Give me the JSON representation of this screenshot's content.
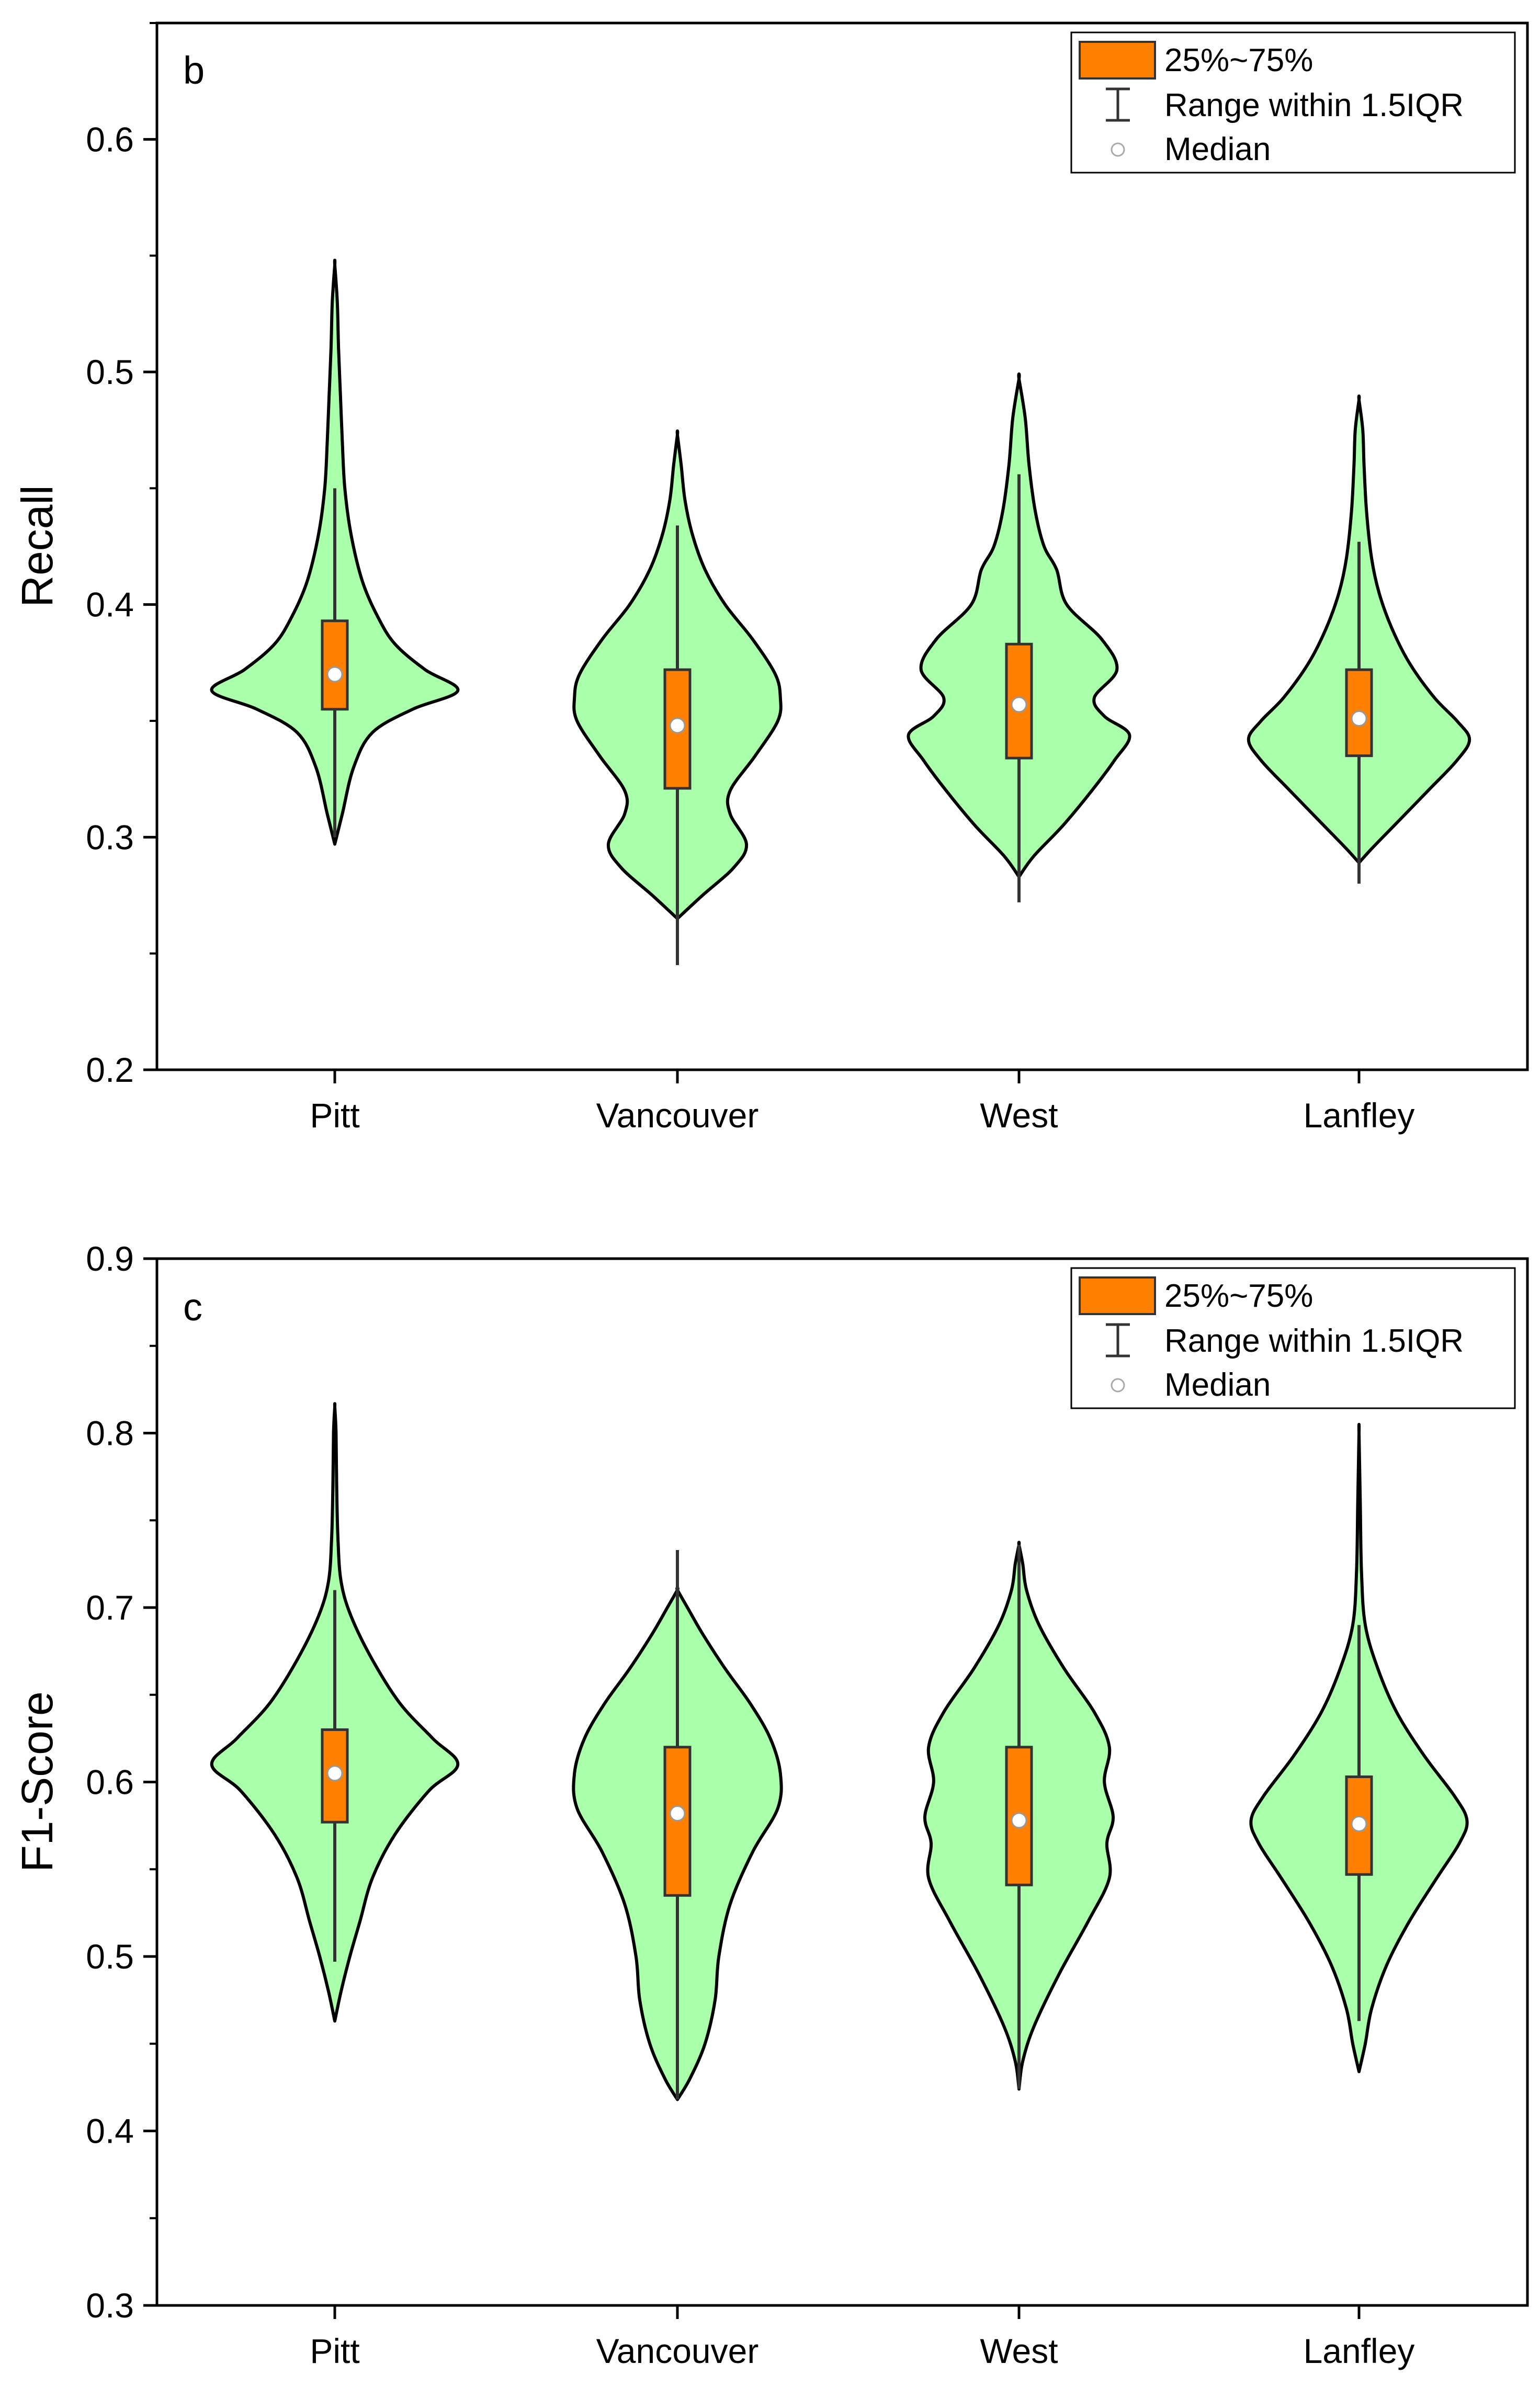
{
  "colors": {
    "violin_fill": "#aaffaa",
    "violin_stroke": "#000000",
    "box_fill": "#ff8000",
    "box_stroke": "#333333",
    "median_fill": "#ffffff",
    "whisker": "#333333"
  },
  "legend": {
    "box_label": "25%~75%",
    "whisker_label": "Range within 1.5IQR",
    "median_label": "Median"
  },
  "chart_data": [
    {
      "type": "violin",
      "panel_label": "b",
      "xlabel": "",
      "ylabel": "Recall",
      "ylim": [
        0.2,
        0.65
      ],
      "yticks": [
        0.2,
        0.3,
        0.4,
        0.5,
        0.6
      ],
      "ytick_labels": [
        "0.2",
        "0.3",
        "0.4",
        "0.5",
        "0.6"
      ],
      "categories": [
        "Pitt",
        "Vancouver",
        "West",
        "Lanfley"
      ],
      "series": [
        {
          "name": "Pitt",
          "median": 0.37,
          "q1": 0.355,
          "q3": 0.393,
          "whisker_low": 0.3,
          "whisker_high": 0.45,
          "violin_min": 0.297,
          "violin_max": 0.546,
          "profile": [
            [
              0.297,
              0.0
            ],
            [
              0.31,
              0.06
            ],
            [
              0.33,
              0.15
            ],
            [
              0.345,
              0.3
            ],
            [
              0.355,
              0.62
            ],
            [
              0.363,
              0.98
            ],
            [
              0.372,
              0.72
            ],
            [
              0.383,
              0.48
            ],
            [
              0.395,
              0.34
            ],
            [
              0.41,
              0.22
            ],
            [
              0.43,
              0.13
            ],
            [
              0.45,
              0.08
            ],
            [
              0.47,
              0.06
            ],
            [
              0.49,
              0.045
            ],
            [
              0.51,
              0.03
            ],
            [
              0.53,
              0.02
            ],
            [
              0.546,
              0.0
            ]
          ]
        },
        {
          "name": "Vancouver",
          "median": 0.348,
          "q1": 0.321,
          "q3": 0.372,
          "whisker_low": 0.245,
          "whisker_high": 0.434,
          "violin_min": 0.265,
          "violin_max": 0.473,
          "profile": [
            [
              0.265,
              0.0
            ],
            [
              0.275,
              0.2
            ],
            [
              0.287,
              0.45
            ],
            [
              0.297,
              0.55
            ],
            [
              0.31,
              0.42
            ],
            [
              0.32,
              0.42
            ],
            [
              0.335,
              0.62
            ],
            [
              0.35,
              0.8
            ],
            [
              0.36,
              0.82
            ],
            [
              0.37,
              0.78
            ],
            [
              0.385,
              0.6
            ],
            [
              0.4,
              0.38
            ],
            [
              0.415,
              0.22
            ],
            [
              0.43,
              0.12
            ],
            [
              0.445,
              0.06
            ],
            [
              0.46,
              0.03
            ],
            [
              0.473,
              0.0
            ]
          ]
        },
        {
          "name": "West",
          "median": 0.357,
          "q1": 0.334,
          "q3": 0.383,
          "whisker_low": 0.272,
          "whisker_high": 0.456,
          "violin_min": 0.283,
          "violin_max": 0.497,
          "profile": [
            [
              0.283,
              0.0
            ],
            [
              0.292,
              0.12
            ],
            [
              0.305,
              0.35
            ],
            [
              0.32,
              0.58
            ],
            [
              0.333,
              0.76
            ],
            [
              0.344,
              0.88
            ],
            [
              0.352,
              0.68
            ],
            [
              0.36,
              0.6
            ],
            [
              0.372,
              0.78
            ],
            [
              0.385,
              0.66
            ],
            [
              0.4,
              0.38
            ],
            [
              0.415,
              0.3
            ],
            [
              0.425,
              0.2
            ],
            [
              0.44,
              0.13
            ],
            [
              0.46,
              0.08
            ],
            [
              0.48,
              0.05
            ],
            [
              0.497,
              0.0
            ]
          ]
        },
        {
          "name": "Lanfley",
          "median": 0.351,
          "q1": 0.335,
          "q3": 0.372,
          "whisker_low": 0.28,
          "whisker_high": 0.427,
          "violin_min": 0.289,
          "violin_max": 0.488,
          "profile": [
            [
              0.289,
              0.0
            ],
            [
              0.295,
              0.1
            ],
            [
              0.305,
              0.28
            ],
            [
              0.32,
              0.55
            ],
            [
              0.333,
              0.78
            ],
            [
              0.342,
              0.88
            ],
            [
              0.35,
              0.78
            ],
            [
              0.36,
              0.6
            ],
            [
              0.375,
              0.4
            ],
            [
              0.39,
              0.26
            ],
            [
              0.405,
              0.16
            ],
            [
              0.42,
              0.1
            ],
            [
              0.44,
              0.06
            ],
            [
              0.46,
              0.04
            ],
            [
              0.475,
              0.03
            ],
            [
              0.488,
              0.0
            ]
          ]
        }
      ]
    },
    {
      "type": "violin",
      "panel_label": "c",
      "xlabel": "",
      "ylabel": "F1-Score",
      "ylim": [
        0.3,
        0.9
      ],
      "yticks": [
        0.3,
        0.4,
        0.5,
        0.6,
        0.7,
        0.8,
        0.9
      ],
      "ytick_labels": [
        "0.3",
        "0.4",
        "0.5",
        "0.6",
        "0.7",
        "0.8",
        "0.9"
      ],
      "categories": [
        "Pitt",
        "Vancouver",
        "West",
        "Lanfley"
      ],
      "series": [
        {
          "name": "Pitt",
          "median": 0.605,
          "q1": 0.577,
          "q3": 0.63,
          "whisker_low": 0.497,
          "whisker_high": 0.71,
          "violin_min": 0.463,
          "violin_max": 0.815,
          "profile": [
            [
              0.463,
              0.0
            ],
            [
              0.48,
              0.05
            ],
            [
              0.5,
              0.12
            ],
            [
              0.52,
              0.2
            ],
            [
              0.545,
              0.3
            ],
            [
              0.57,
              0.48
            ],
            [
              0.595,
              0.75
            ],
            [
              0.61,
              0.98
            ],
            [
              0.625,
              0.78
            ],
            [
              0.645,
              0.52
            ],
            [
              0.67,
              0.3
            ],
            [
              0.695,
              0.13
            ],
            [
              0.715,
              0.05
            ],
            [
              0.74,
              0.025
            ],
            [
              0.77,
              0.015
            ],
            [
              0.8,
              0.01
            ],
            [
              0.815,
              0.0
            ]
          ]
        },
        {
          "name": "Vancouver",
          "median": 0.582,
          "q1": 0.535,
          "q3": 0.62,
          "whisker_low": 0.418,
          "whisker_high": 0.733,
          "violin_min": 0.418,
          "violin_max": 0.71,
          "profile": [
            [
              0.418,
              0.0
            ],
            [
              0.43,
              0.1
            ],
            [
              0.45,
              0.22
            ],
            [
              0.475,
              0.3
            ],
            [
              0.5,
              0.33
            ],
            [
              0.53,
              0.42
            ],
            [
              0.56,
              0.6
            ],
            [
              0.585,
              0.8
            ],
            [
              0.605,
              0.82
            ],
            [
              0.625,
              0.74
            ],
            [
              0.645,
              0.58
            ],
            [
              0.665,
              0.38
            ],
            [
              0.685,
              0.2
            ],
            [
              0.7,
              0.08
            ],
            [
              0.71,
              0.0
            ]
          ]
        },
        {
          "name": "West",
          "median": 0.578,
          "q1": 0.541,
          "q3": 0.62,
          "whisker_low": 0.424,
          "whisker_high": 0.736,
          "violin_min": 0.424,
          "violin_max": 0.736,
          "profile": [
            [
              0.424,
              0.0
            ],
            [
              0.44,
              0.03
            ],
            [
              0.46,
              0.12
            ],
            [
              0.49,
              0.32
            ],
            [
              0.52,
              0.55
            ],
            [
              0.545,
              0.72
            ],
            [
              0.565,
              0.7
            ],
            [
              0.58,
              0.75
            ],
            [
              0.6,
              0.68
            ],
            [
              0.62,
              0.72
            ],
            [
              0.64,
              0.6
            ],
            [
              0.665,
              0.36
            ],
            [
              0.69,
              0.16
            ],
            [
              0.71,
              0.06
            ],
            [
              0.725,
              0.03
            ],
            [
              0.736,
              0.0
            ]
          ]
        },
        {
          "name": "Lanfley",
          "median": 0.576,
          "q1": 0.547,
          "q3": 0.603,
          "whisker_low": 0.463,
          "whisker_high": 0.69,
          "violin_min": 0.434,
          "violin_max": 0.8,
          "profile": [
            [
              0.434,
              0.0
            ],
            [
              0.45,
              0.05
            ],
            [
              0.47,
              0.1
            ],
            [
              0.495,
              0.22
            ],
            [
              0.52,
              0.4
            ],
            [
              0.545,
              0.62
            ],
            [
              0.565,
              0.8
            ],
            [
              0.578,
              0.86
            ],
            [
              0.592,
              0.76
            ],
            [
              0.615,
              0.52
            ],
            [
              0.64,
              0.3
            ],
            [
              0.665,
              0.15
            ],
            [
              0.69,
              0.05
            ],
            [
              0.72,
              0.02
            ],
            [
              0.76,
              0.01
            ],
            [
              0.8,
              0.0
            ]
          ]
        }
      ]
    }
  ]
}
